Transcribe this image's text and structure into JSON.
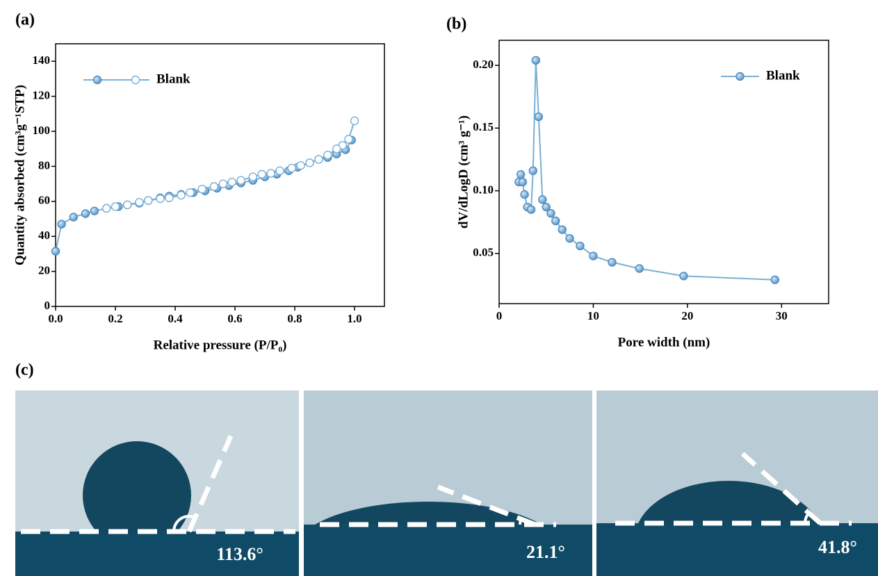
{
  "chart_data": [
    {
      "type": "line",
      "panel_label": "(a)",
      "xlabel": "Relative pressure (P/P₀)",
      "ylabel": "Quantity absorbed (cm³g⁻¹STP)",
      "xlim": [
        0,
        1.1
      ],
      "xticks": [
        {
          "value": 0,
          "label": "0.0"
        },
        {
          "value": 0.2,
          "label": "0.2"
        },
        {
          "value": 0.4,
          "label": "0.4"
        },
        {
          "value": 0.6,
          "label": "0.6"
        },
        {
          "value": 0.8,
          "label": "0.8"
        },
        {
          "value": 1,
          "label": "1.0"
        }
      ],
      "ylim": [
        0,
        150
      ],
      "yticks": [
        0,
        20,
        40,
        60,
        80,
        100,
        120,
        140
      ],
      "legend": "upper left",
      "series": [
        {
          "name": "Blank",
          "color": "#7aafd6",
          "marker": "filled",
          "x": [
            0.0,
            0.02,
            0.06,
            0.1,
            0.13,
            0.17,
            0.21,
            0.24,
            0.28,
            0.31,
            0.35,
            0.38,
            0.42,
            0.46,
            0.5,
            0.54,
            0.58,
            0.62,
            0.66,
            0.7,
            0.74,
            0.78,
            0.81,
            0.85,
            0.88,
            0.91,
            0.94,
            0.97,
            0.99
          ],
          "values": [
            31.5,
            47,
            51,
            53,
            54.5,
            56,
            57,
            58,
            59,
            60.5,
            62,
            63,
            64,
            65,
            66,
            67.5,
            69,
            70.5,
            72,
            74,
            75.5,
            77.5,
            79.5,
            82,
            84,
            85,
            87,
            89.5,
            95
          ]
        },
        {
          "color": "#7aafd6",
          "marker": "open",
          "x": [
            1.0,
            0.98,
            0.96,
            0.94,
            0.91,
            0.88,
            0.85,
            0.82,
            0.79,
            0.75,
            0.72,
            0.69,
            0.66,
            0.62,
            0.59,
            0.56,
            0.53,
            0.49,
            0.45,
            0.42,
            0.38,
            0.35,
            0.31,
            0.28,
            0.24,
            0.2,
            0.17
          ],
          "values": [
            106,
            95.5,
            92,
            90,
            86.5,
            84,
            82,
            80.5,
            79,
            77.5,
            76,
            75.5,
            74,
            72,
            71,
            70,
            68.5,
            67,
            65,
            63.5,
            62,
            61.5,
            60.5,
            59.5,
            58,
            57,
            56
          ]
        }
      ]
    },
    {
      "type": "line",
      "panel_label": "(b)",
      "xlabel": "Pore width (nm)",
      "ylabel": "dV/dLogD (cm³ g⁻¹)",
      "xlim": [
        0,
        35
      ],
      "xticks": [
        0,
        10,
        20,
        30
      ],
      "ylim": [
        0.01,
        0.22
      ],
      "yticks": [
        0.05,
        {
          "value": 0.1,
          "label": "0.10"
        },
        0.15,
        {
          "value": 0.2,
          "label": "0.20"
        }
      ],
      "legend": "upper right",
      "series": [
        {
          "name": "Blank",
          "color": "#7aafd6",
          "marker": "filled",
          "x": [
            2.1,
            2.3,
            2.5,
            2.7,
            3.0,
            3.4,
            3.6,
            3.9,
            4.2,
            4.6,
            5.0,
            5.5,
            6.0,
            6.7,
            7.5,
            8.6,
            10,
            12,
            14.9,
            19.6,
            29.3
          ],
          "values": [
            0.107,
            0.113,
            0.107,
            0.097,
            0.087,
            0.085,
            0.116,
            0.204,
            0.159,
            0.093,
            0.087,
            0.082,
            0.076,
            0.069,
            0.062,
            0.056,
            0.048,
            0.043,
            0.038,
            0.032,
            0.029
          ]
        }
      ]
    }
  ],
  "photos": {
    "panel_label": "(c)",
    "contact_angles": {
      "values": [
        113.6,
        21.1,
        41.8
      ],
      "value_labels": [
        "113.6°",
        "21.1°",
        "41.8°"
      ]
    }
  }
}
